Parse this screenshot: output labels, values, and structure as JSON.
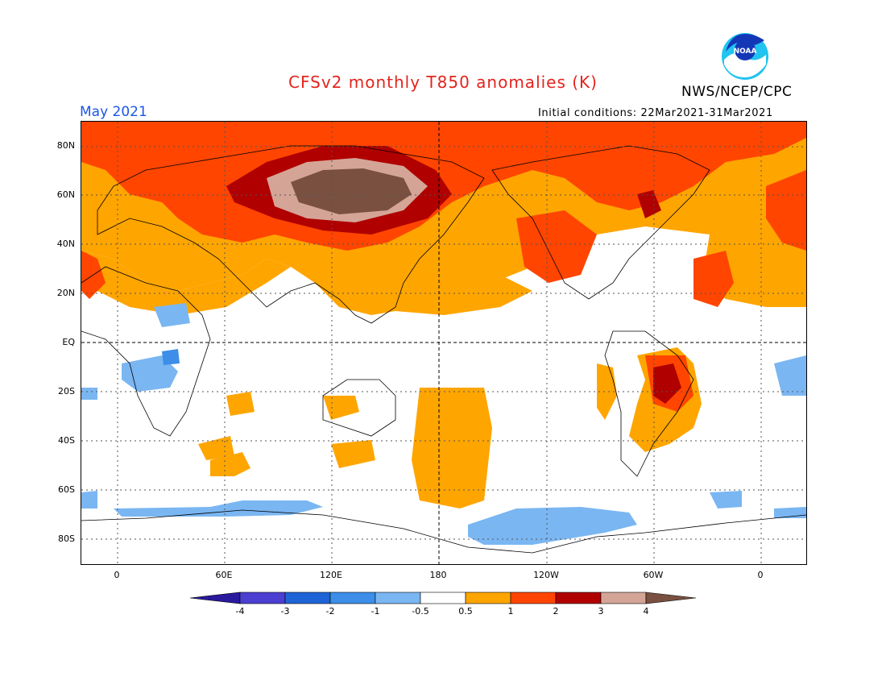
{
  "title": "CFSv2 monthly T850 anomalies (K)",
  "agency": "NWS/NCEP/CPC",
  "logo_text": "NOAA",
  "month": "May 2021",
  "initial_conditions": "Initial conditions: 22Mar2021-31Mar2021",
  "lat_labels": [
    "80N",
    "60N",
    "40N",
    "20N",
    "EQ",
    "20S",
    "40S",
    "60S",
    "80S"
  ],
  "lon_labels": [
    "0",
    "60E",
    "120E",
    "180",
    "120W",
    "60W",
    "0"
  ],
  "colorbar": {
    "labels": [
      "-4",
      "-3",
      "-2",
      "-1",
      "-0.5",
      "0.5",
      "1",
      "2",
      "3",
      "4"
    ],
    "colors": [
      "#2a1a9e",
      "#4b3fd1",
      "#1e64d6",
      "#3c8ee8",
      "#7ab6f2",
      "#ffffff",
      "#ffa500",
      "#ff4500",
      "#b00000",
      "#d4a597",
      "#7a5040"
    ]
  }
}
